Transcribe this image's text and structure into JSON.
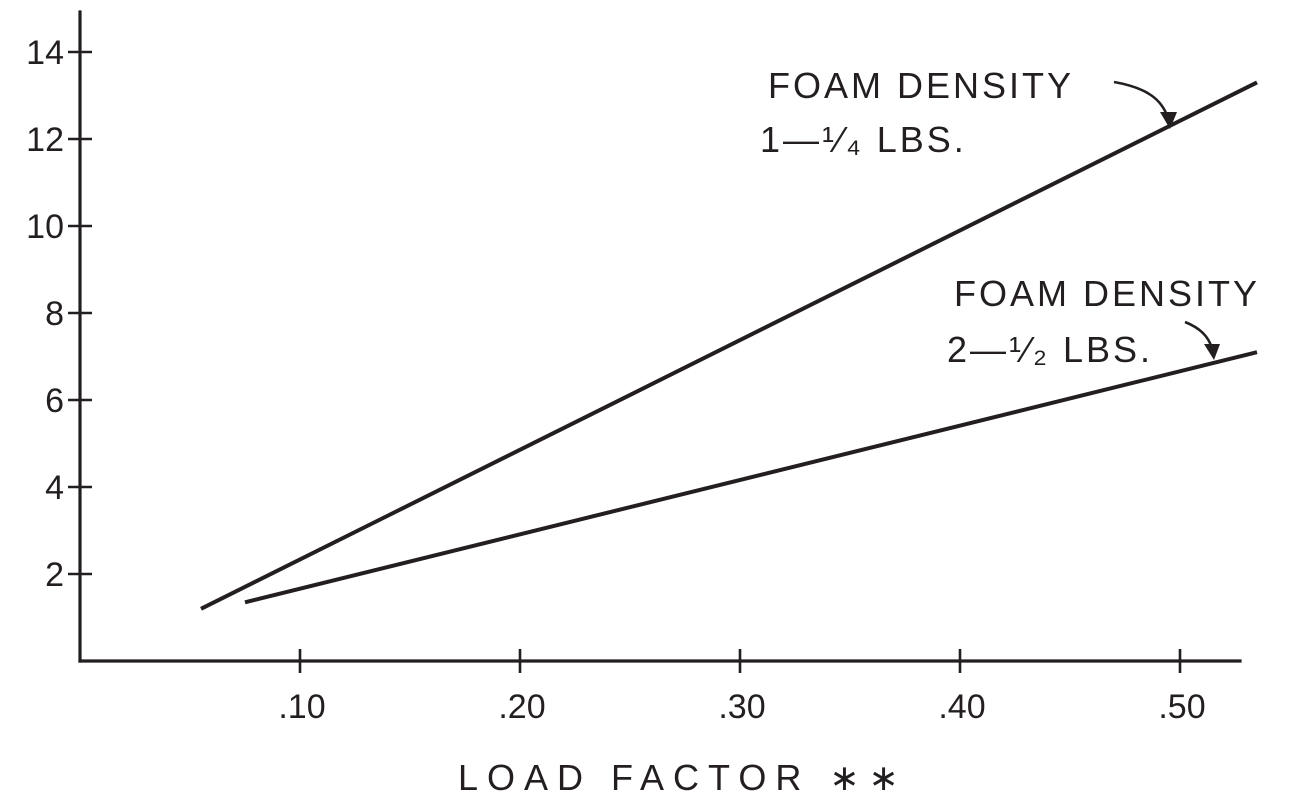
{
  "chart_data": {
    "type": "line",
    "title": "",
    "xlabel": "LOAD FACTOR ∗∗",
    "ylabel": "",
    "xlim": [
      0,
      0.53
    ],
    "ylim": [
      0,
      14
    ],
    "x_ticks": [
      ".10",
      ".20",
      ".30",
      ".40",
      ".50"
    ],
    "x_tick_values": [
      0.1,
      0.2,
      0.3,
      0.4,
      0.5
    ],
    "y_ticks": [
      "2",
      "4",
      "6",
      "8",
      "10",
      "12",
      "14"
    ],
    "y_tick_values": [
      2,
      4,
      6,
      8,
      10,
      12,
      14
    ],
    "grid": false,
    "legend": "none",
    "series": [
      {
        "label_lines": [
          "FOAM DENSITY",
          "1—¹⁄₄ LBS."
        ],
        "points": [
          {
            "x": 0.055,
            "y": 1.2
          },
          {
            "x": 0.535,
            "y": 13.3
          }
        ]
      },
      {
        "label_lines": [
          "FOAM DENSITY",
          "2—¹⁄₂ LBS."
        ],
        "points": [
          {
            "x": 0.075,
            "y": 1.35
          },
          {
            "x": 0.535,
            "y": 7.1
          }
        ]
      }
    ]
  }
}
